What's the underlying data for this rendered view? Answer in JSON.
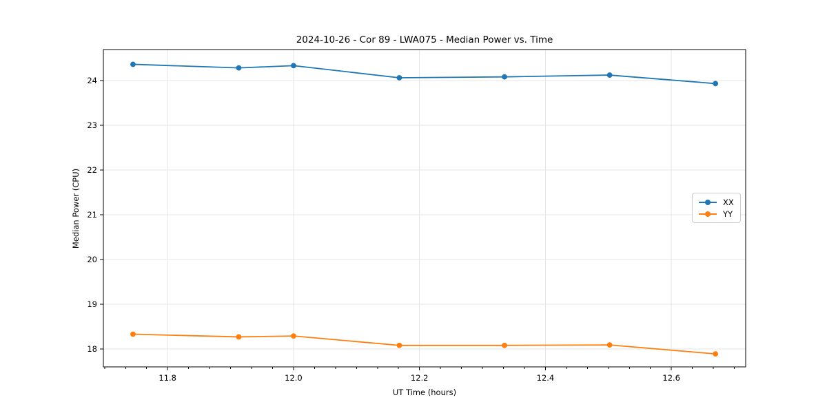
{
  "figure": {
    "background_color": "#ffffff",
    "text_color": "#000000",
    "grid_color": "#e4e4e4",
    "spine_color": "#000000"
  },
  "chart_data": {
    "type": "line",
    "title": "2024-10-26 - Cor 89 - LWA075 - Median Power vs. Time",
    "xlabel": "UT Time (hours)",
    "ylabel": "Median Power (CPU)",
    "xlim": [
      11.698,
      12.718
    ],
    "ylim": [
      17.6,
      24.69
    ],
    "grid": "major-both",
    "legend_position": "center-right",
    "marker": "circle",
    "x": [
      11.745,
      11.913,
      12.0,
      12.168,
      12.335,
      12.502,
      12.67
    ],
    "series": [
      {
        "name": "XX",
        "color": "#1f77b4",
        "values": [
          24.36,
          24.28,
          24.33,
          24.06,
          24.08,
          24.12,
          23.93
        ]
      },
      {
        "name": "YY",
        "color": "#ff7f0e",
        "values": [
          18.33,
          18.27,
          18.29,
          18.08,
          18.08,
          18.09,
          17.89
        ]
      }
    ],
    "xticks": [
      {
        "value": 11.8,
        "label": "11.8"
      },
      {
        "value": 12.0,
        "label": "12.0"
      },
      {
        "value": 12.2,
        "label": "12.2"
      },
      {
        "value": 12.4,
        "label": "12.4"
      },
      {
        "value": 12.6,
        "label": "12.6"
      }
    ],
    "yticks": [
      {
        "value": 18,
        "label": "18"
      },
      {
        "value": 19,
        "label": "19"
      },
      {
        "value": 20,
        "label": "20"
      },
      {
        "value": 21,
        "label": "21"
      },
      {
        "value": 22,
        "label": "22"
      },
      {
        "value": 23,
        "label": "23"
      },
      {
        "value": 24,
        "label": "24"
      }
    ],
    "x_minor_step": 0.0333333
  }
}
